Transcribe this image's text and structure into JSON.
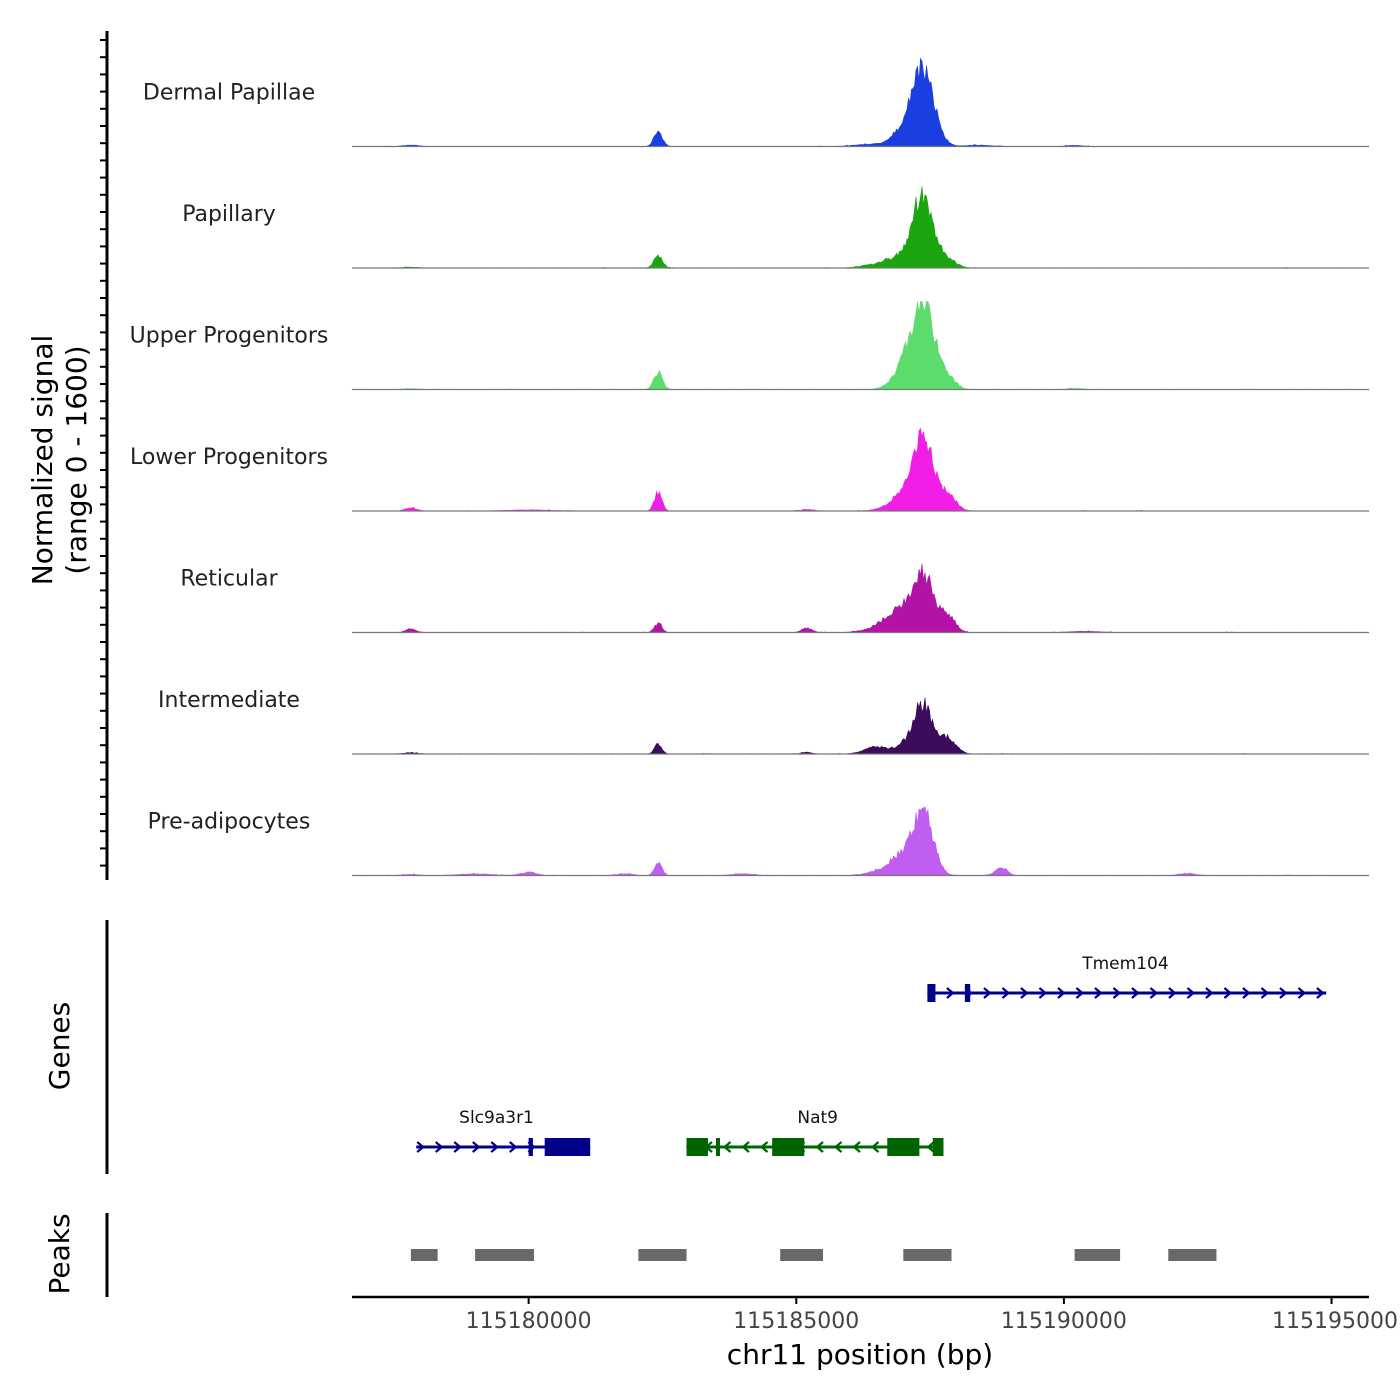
{
  "chart_data": {
    "type": "area",
    "title": "",
    "xlabel": "chr11 position (bp)",
    "ylabel_line1": "Normalized signal",
    "ylabel_line2": "(range 0 - 1600)",
    "signal_range": [
      0,
      1600
    ],
    "xlim": [
      115176700,
      115195700
    ],
    "x_ticks": [
      115180000,
      115185000,
      115190000,
      115195000
    ],
    "x_tick_labels": [
      "115180000",
      "115185000",
      "115190000",
      "115195000"
    ],
    "genes_label": "Genes",
    "peaks_label": "Peaks",
    "tracks": [
      {
        "name": "Dermal Papillae",
        "color": "#1a3ee0",
        "peaks": [
          [
            115187380,
            1300,
            200
          ],
          [
            115187030,
            300,
            220
          ],
          [
            115182420,
            250,
            80
          ],
          [
            115186400,
            40,
            300
          ],
          [
            115177800,
            25,
            150
          ],
          [
            115188400,
            25,
            250
          ],
          [
            115190200,
            20,
            150
          ]
        ]
      },
      {
        "name": "Papillary",
        "color": "#1ba60f",
        "peaks": [
          [
            115187380,
            1300,
            180
          ],
          [
            115187050,
            250,
            200
          ],
          [
            115187820,
            160,
            160
          ],
          [
            115182420,
            220,
            80
          ],
          [
            115186500,
            70,
            250
          ],
          [
            115186700,
            50,
            120
          ],
          [
            115177800,
            15,
            150
          ]
        ]
      },
      {
        "name": "Upper Progenitors",
        "color": "#5ddc6e",
        "peaks": [
          [
            115187380,
            1550,
            200
          ],
          [
            115187060,
            300,
            200
          ],
          [
            115187820,
            200,
            150
          ],
          [
            115182420,
            300,
            80
          ],
          [
            115186900,
            100,
            200
          ],
          [
            115177800,
            15,
            150
          ],
          [
            115190200,
            20,
            150
          ]
        ]
      },
      {
        "name": "Lower Progenitors",
        "color": "#f01ee6",
        "peaks": [
          [
            115187380,
            1350,
            180
          ],
          [
            115187020,
            280,
            200
          ],
          [
            115187830,
            300,
            150
          ],
          [
            115182420,
            350,
            70
          ],
          [
            115186700,
            60,
            200
          ],
          [
            115177800,
            55,
            110
          ],
          [
            115185200,
            25,
            120
          ],
          [
            115180000,
            20,
            400
          ]
        ]
      },
      {
        "name": "Reticular",
        "color": "#b313a5",
        "peaks": [
          [
            115187380,
            1000,
            180
          ],
          [
            115187000,
            350,
            220
          ],
          [
            115187830,
            300,
            140
          ],
          [
            115182420,
            170,
            70
          ],
          [
            115186700,
            150,
            300
          ],
          [
            115177800,
            60,
            100
          ],
          [
            115185200,
            70,
            100
          ],
          [
            115190400,
            20,
            300
          ]
        ]
      },
      {
        "name": "Intermediate",
        "color": "#3d0b5c",
        "peaks": [
          [
            115187380,
            850,
            160
          ],
          [
            115187100,
            200,
            180
          ],
          [
            115187830,
            300,
            150
          ],
          [
            115186500,
            130,
            220
          ],
          [
            115182420,
            170,
            70
          ],
          [
            115185200,
            30,
            100
          ],
          [
            115177800,
            20,
            150
          ]
        ]
      },
      {
        "name": "Pre-adipocytes",
        "color": "#c05ef2",
        "peaks": [
          [
            115187380,
            1100,
            180
          ],
          [
            115187000,
            350,
            220
          ],
          [
            115186600,
            80,
            250
          ],
          [
            115182420,
            230,
            70
          ],
          [
            115188830,
            140,
            110
          ],
          [
            115180000,
            60,
            150
          ],
          [
            115192300,
            40,
            150
          ],
          [
            115179000,
            30,
            300
          ],
          [
            115181800,
            30,
            150
          ],
          [
            115184000,
            30,
            200
          ],
          [
            115177800,
            20,
            150
          ]
        ]
      }
    ],
    "genes": [
      {
        "name": "Tmem104",
        "strand": "+",
        "color": "#00008b",
        "row": 0,
        "start": 115187450,
        "end": 115194900,
        "label_pos": 115191150,
        "exons": [
          [
            115187450,
            115187600
          ],
          [
            115188150,
            115188250
          ]
        ]
      },
      {
        "name": "Slc9a3r1",
        "strand": "+",
        "color": "#00008b",
        "row": 1,
        "start": 115177900,
        "end": 115181150,
        "label_pos": 115179400,
        "exons": [
          [
            115180000,
            115180080
          ],
          [
            115180300,
            115181150
          ]
        ]
      },
      {
        "name": "Nat9",
        "strand": "-",
        "color": "#006400",
        "row": 1,
        "start": 115182950,
        "end": 115187750,
        "label_pos": 115185400,
        "exons": [
          [
            115182950,
            115183350
          ],
          [
            115183500,
            115183560
          ],
          [
            115184550,
            115185150
          ],
          [
            115186700,
            115187300
          ],
          [
            115187550,
            115187750
          ]
        ]
      }
    ],
    "peak_regions": [
      [
        115177800,
        115178300
      ],
      [
        115179000,
        115180100
      ],
      [
        115182050,
        115182950
      ],
      [
        115184700,
        115185500
      ],
      [
        115187000,
        115187900
      ],
      [
        115190200,
        115191050
      ],
      [
        115191950,
        115192850
      ]
    ]
  }
}
